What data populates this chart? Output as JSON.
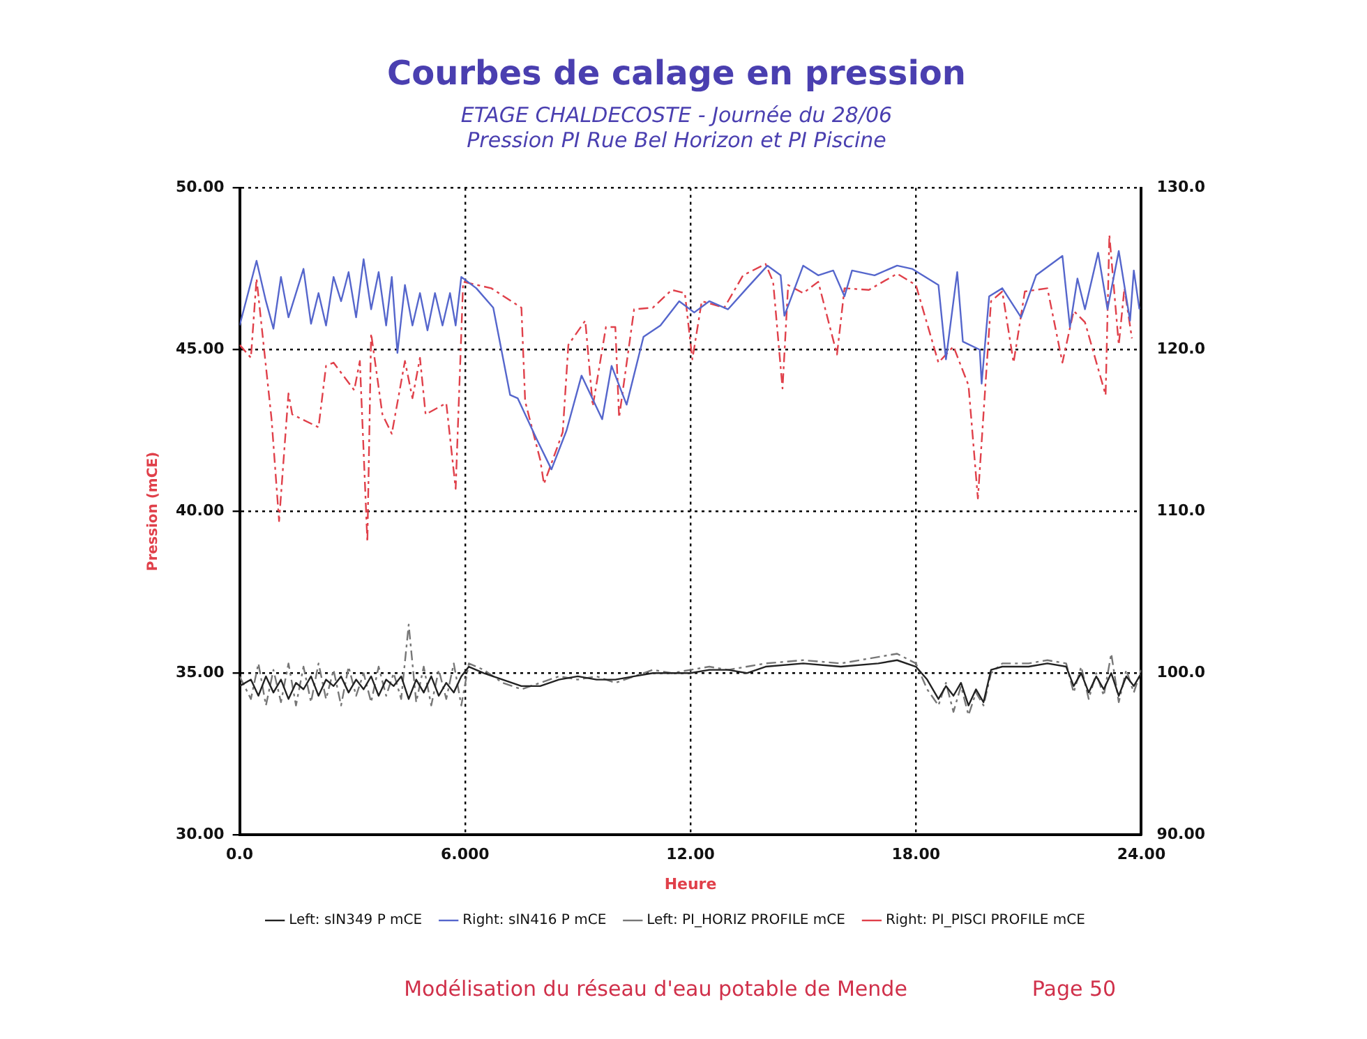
{
  "chart_data": {
    "type": "line",
    "title": "Courbes de calage en pression",
    "subtitle": "ETAGE CHALDECOSTE - Journée du 28/06\nPression PI Rue Bel Horizon et PI Piscine",
    "xlabel": "Heure",
    "ylabel": "Pression (mCE)",
    "xlim": [
      0,
      24
    ],
    "xticks": [
      {
        "value": 0,
        "label": "0.0"
      },
      {
        "value": 6,
        "label": "6.000"
      },
      {
        "value": 12,
        "label": "12.00"
      },
      {
        "value": 18,
        "label": "18.00"
      },
      {
        "value": 24,
        "label": "24.00"
      }
    ],
    "ylim": [
      30,
      50
    ],
    "yticks": [
      {
        "value": 30,
        "label": "30.00"
      },
      {
        "value": 35,
        "label": "35.00"
      },
      {
        "value": 40,
        "label": "40.00"
      },
      {
        "value": 45,
        "label": "45.00"
      },
      {
        "value": 50,
        "label": "50.00"
      }
    ],
    "y2lim": [
      90,
      130
    ],
    "y2ticks": [
      {
        "value": 90,
        "label": "90.00"
      },
      {
        "value": 100,
        "label": "100.0"
      },
      {
        "value": 110,
        "label": "110.0"
      },
      {
        "value": 120,
        "label": "120.0"
      },
      {
        "value": 130,
        "label": "130.0"
      }
    ],
    "grid": true,
    "legend": "bottom",
    "marker": "none",
    "series": [
      {
        "name": "Left: sIN349 P mCE",
        "color": "#222222",
        "line_style": "solid",
        "x": [
          0,
          0.3,
          0.5,
          0.7,
          0.9,
          1.1,
          1.3,
          1.5,
          1.7,
          1.9,
          2.1,
          2.3,
          2.5,
          2.7,
          2.9,
          3.1,
          3.3,
          3.5,
          3.7,
          3.9,
          4.1,
          4.3,
          4.5,
          4.7,
          4.9,
          5.1,
          5.3,
          5.5,
          5.7,
          5.9,
          6.1,
          6.5,
          7,
          7.5,
          8,
          8.5,
          9,
          9.5,
          10,
          10.5,
          11,
          11.5,
          12,
          12.5,
          13,
          13.5,
          14,
          15,
          16,
          17,
          17.5,
          18,
          18.3,
          18.6,
          18.8,
          19,
          19.2,
          19.4,
          19.6,
          19.8,
          20,
          20.3,
          21,
          21.5,
          22,
          22.2,
          22.4,
          22.6,
          22.8,
          23,
          23.2,
          23.4,
          23.6,
          23.8,
          24
        ],
        "values": [
          34.6,
          34.8,
          34.3,
          34.9,
          34.4,
          34.8,
          34.2,
          34.7,
          34.5,
          34.9,
          34.3,
          34.8,
          34.6,
          34.9,
          34.4,
          34.8,
          34.5,
          34.9,
          34.3,
          34.8,
          34.6,
          34.9,
          34.2,
          34.8,
          34.4,
          34.9,
          34.3,
          34.7,
          34.4,
          34.9,
          35.2,
          35.0,
          34.8,
          34.6,
          34.6,
          34.8,
          34.9,
          34.8,
          34.8,
          34.9,
          35.0,
          35.0,
          35.0,
          35.1,
          35.1,
          35.0,
          35.2,
          35.3,
          35.2,
          35.3,
          35.4,
          35.2,
          34.8,
          34.2,
          34.6,
          34.3,
          34.7,
          34.0,
          34.5,
          34.1,
          35.1,
          35.2,
          35.2,
          35.3,
          35.2,
          34.6,
          35.0,
          34.4,
          34.9,
          34.5,
          35.0,
          34.3,
          34.9,
          34.6,
          35.0
        ]
      },
      {
        "name": "Right: sIN416 P mCE",
        "color": "#5566cc",
        "line_style": "solid",
        "axis": "y2",
        "x": [
          0,
          0.45,
          0.7,
          0.9,
          1.1,
          1.3,
          1.5,
          1.7,
          1.9,
          2.1,
          2.3,
          2.5,
          2.7,
          2.9,
          3.1,
          3.3,
          3.5,
          3.7,
          3.9,
          4.05,
          4.2,
          4.4,
          4.6,
          4.8,
          5.0,
          5.2,
          5.4,
          5.6,
          5.75,
          5.9,
          6.3,
          6.75,
          7.2,
          7.4,
          7.9,
          8.3,
          8.7,
          9.1,
          9.65,
          9.9,
          10.3,
          10.75,
          11.2,
          11.7,
          12.1,
          12.5,
          13,
          13.5,
          14.05,
          14.4,
          14.5,
          15,
          15.4,
          15.8,
          16.1,
          16.3,
          16.9,
          17.5,
          17.9,
          18.6,
          18.8,
          19.1,
          19.25,
          19.7,
          19.75,
          19.95,
          20.3,
          20.8,
          21.2,
          21.9,
          22.1,
          22.3,
          22.5,
          22.85,
          23.1,
          23.4,
          23.7,
          23.8,
          23.95
        ],
        "values": [
          121.5,
          125.5,
          123,
          121.3,
          124.5,
          122,
          123.5,
          125,
          121.6,
          123.5,
          121.5,
          124.5,
          123,
          124.8,
          122,
          125.6,
          122.5,
          124.8,
          121.5,
          124.5,
          119.8,
          124,
          121.5,
          123.5,
          121.2,
          123.5,
          121.5,
          123.5,
          121.5,
          124.5,
          123.8,
          122.6,
          117.2,
          117,
          114.5,
          112.6,
          115,
          118.4,
          115.7,
          119,
          116.6,
          120.8,
          121.5,
          123,
          122.3,
          123,
          122.5,
          123.8,
          125.2,
          124.6,
          122.1,
          125.2,
          124.6,
          124.9,
          123.3,
          124.9,
          124.6,
          125.2,
          125,
          124,
          119.4,
          124.8,
          120.5,
          120,
          117.9,
          123.3,
          123.8,
          122,
          124.6,
          125.8,
          121.4,
          124.4,
          122.5,
          126,
          122.5,
          126.1,
          121.8,
          124.9,
          122.5
        ]
      },
      {
        "name": "Left: PI_HORIZ PROFILE mCE",
        "color": "#777777",
        "line_style": "dashed",
        "x": [
          0,
          0.3,
          0.5,
          0.7,
          0.9,
          1.1,
          1.3,
          1.5,
          1.7,
          1.9,
          2.1,
          2.3,
          2.5,
          2.7,
          2.9,
          3.1,
          3.3,
          3.5,
          3.7,
          3.9,
          4.1,
          4.3,
          4.5,
          4.7,
          4.9,
          5.1,
          5.3,
          5.5,
          5.7,
          5.9,
          6.1,
          6.5,
          7,
          7.5,
          8,
          8.5,
          9,
          9.5,
          10,
          10.5,
          11,
          11.5,
          12,
          12.5,
          13,
          13.5,
          14,
          15,
          16,
          17,
          17.5,
          18,
          18.3,
          18.6,
          18.8,
          19,
          19.2,
          19.4,
          19.6,
          19.8,
          20,
          20.3,
          21,
          21.5,
          22,
          22.2,
          22.4,
          22.6,
          22.8,
          23,
          23.2,
          23.4,
          23.6,
          23.8,
          24
        ],
        "values": [
          34.9,
          34.2,
          35.3,
          34.0,
          35.1,
          34.1,
          35.3,
          34.0,
          35.2,
          34.1,
          35.3,
          34.2,
          35.1,
          34.0,
          35.2,
          34.3,
          35.0,
          34.1,
          35.2,
          34.3,
          35.0,
          34.2,
          36.5,
          34.1,
          35.2,
          34.0,
          35.1,
          34.2,
          35.3,
          34.0,
          35.3,
          35.1,
          34.7,
          34.5,
          34.7,
          34.9,
          34.8,
          34.9,
          34.7,
          34.9,
          35.1,
          35.0,
          35.1,
          35.2,
          35.1,
          35.2,
          35.3,
          35.4,
          35.3,
          35.5,
          35.6,
          35.3,
          34.5,
          34.0,
          34.7,
          33.8,
          34.6,
          33.7,
          34.4,
          34.0,
          35.0,
          35.3,
          35.3,
          35.4,
          35.3,
          34.4,
          35.2,
          34.2,
          35.0,
          34.3,
          35.6,
          34.1,
          35.1,
          34.4,
          35.1
        ]
      },
      {
        "name": "Right: PI_PISCI PROFILE mCE",
        "color": "#e0404a",
        "line_style": "dashed",
        "axis": "y2",
        "x": [
          0,
          0.3,
          0.45,
          0.85,
          1.05,
          1.3,
          1.4,
          2.1,
          2.3,
          2.5,
          3.05,
          3.2,
          3.4,
          3.5,
          3.8,
          4.05,
          4.4,
          4.6,
          4.8,
          4.95,
          5.5,
          5.75,
          5.95,
          6.7,
          7.5,
          7.6,
          8.0,
          8.1,
          8.6,
          8.75,
          9.2,
          9.4,
          9.75,
          10,
          10.1,
          10.5,
          11,
          11.5,
          11.85,
          12.05,
          12.3,
          12.9,
          13.4,
          14,
          14.2,
          14.45,
          14.6,
          15,
          15.4,
          15.9,
          16.1,
          16.75,
          17.5,
          18,
          18.6,
          19,
          19.4,
          19.65,
          20,
          20.3,
          20.6,
          20.9,
          21.5,
          21.9,
          22.2,
          22.5,
          23.05,
          23.15,
          23.4,
          23.55,
          23.75
        ],
        "values": [
          120.3,
          119.5,
          124.4,
          115.7,
          109.4,
          117.3,
          116,
          115.2,
          119,
          119.2,
          117.5,
          119.3,
          108.1,
          121,
          116,
          114.8,
          119.3,
          117,
          119.5,
          116,
          116.7,
          111.4,
          124.2,
          123.8,
          122.6,
          116.8,
          113.2,
          111.7,
          114.9,
          120.3,
          121.8,
          116.5,
          121.4,
          121.4,
          115.8,
          122.5,
          122.6,
          123.7,
          123.5,
          119.4,
          123,
          122.6,
          124.6,
          125.3,
          124.2,
          117.6,
          124,
          123.5,
          124.2,
          119.7,
          123.8,
          123.7,
          124.7,
          124,
          119.2,
          120.2,
          117.8,
          110.8,
          123,
          123.6,
          119.2,
          123.6,
          123.8,
          119.2,
          122.4,
          121.7,
          117.2,
          127.1,
          120.3,
          123.8,
          120.7
        ]
      }
    ],
    "annotations": [
      "Modélisation du réseau d'eau potable de Mende",
      "Page 50"
    ]
  }
}
